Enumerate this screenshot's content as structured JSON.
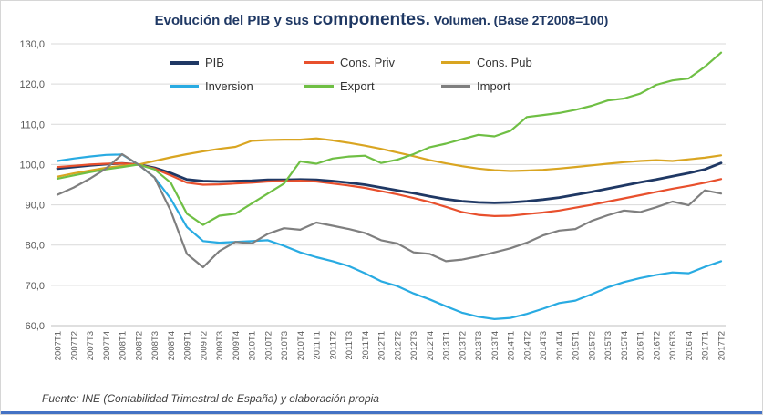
{
  "title": {
    "part1": "Evolución del PIB y sus ",
    "part2": "componentes.",
    "part3": " Volumen. (Base 2T2008=100)"
  },
  "footer": "Fuente: INE (Contabilidad Trimestral de España) y elaboración propia",
  "colors": {
    "title": "#1F3864",
    "axis_text": "#595959",
    "gridline": "#D9D9D9",
    "axis_line": "#BFBFBF",
    "accent_bar": "#4472C4"
  },
  "chart_data": {
    "type": "line",
    "title": "Evolución del PIB y sus componentes. Volumen. (Base 2T2008=100)",
    "xlabel": "",
    "ylabel": "",
    "ylim": [
      60,
      130
    ],
    "grid": true,
    "legend_position": "top-center",
    "y_ticks": [
      {
        "label": "60,0",
        "value": 60
      },
      {
        "label": "70,0",
        "value": 70
      },
      {
        "label": "80,0",
        "value": 80
      },
      {
        "label": "90,0",
        "value": 90
      },
      {
        "label": "100,0",
        "value": 100
      },
      {
        "label": "110,0",
        "value": 110
      },
      {
        "label": "120,0",
        "value": 120
      },
      {
        "label": "130,0",
        "value": 130
      }
    ],
    "categories": [
      "2007T1",
      "2007T2",
      "2007T3",
      "2007T4",
      "2008T1",
      "2008T2",
      "2008T3",
      "2008T4",
      "2009T1",
      "2009T2",
      "2009T3",
      "2009T4",
      "2010T1",
      "2010T2",
      "2010T3",
      "2010T4",
      "2011T1",
      "2011T2",
      "2011T3",
      "2011T4",
      "2012T1",
      "2012T2",
      "2012T3",
      "2012T4",
      "2013T1",
      "2013T2",
      "2013T3",
      "2013T4",
      "2014T1",
      "2014T2",
      "2014T3",
      "2014T4",
      "2015T1",
      "2015T2",
      "2015T3",
      "2015T4",
      "2016T1",
      "2016T2",
      "2016T3",
      "2016T4",
      "2017T1",
      "2017T2"
    ],
    "series": [
      {
        "name": "PIB",
        "color": "#1F3864",
        "width": 2.8,
        "values": [
          99.0,
          99.4,
          99.8,
          100.1,
          100.3,
          100.0,
          99.2,
          97.9,
          96.3,
          95.9,
          95.8,
          95.9,
          96.0,
          96.2,
          96.2,
          96.3,
          96.2,
          95.9,
          95.5,
          95.0,
          94.3,
          93.6,
          92.9,
          92.1,
          91.4,
          90.9,
          90.6,
          90.5,
          90.6,
          90.9,
          91.3,
          91.8,
          92.5,
          93.2,
          94.0,
          94.8,
          95.6,
          96.3,
          97.1,
          97.9,
          98.8,
          100.4
        ]
      },
      {
        "name": "Cons. Priv",
        "color": "#E8502D",
        "width": 2.2,
        "values": [
          99.4,
          99.7,
          100.0,
          100.2,
          100.3,
          100.0,
          99.0,
          97.3,
          95.5,
          95.0,
          95.1,
          95.3,
          95.5,
          95.8,
          95.9,
          96.0,
          95.8,
          95.3,
          94.8,
          94.2,
          93.4,
          92.6,
          91.7,
          90.7,
          89.5,
          88.2,
          87.5,
          87.2,
          87.3,
          87.7,
          88.1,
          88.6,
          89.3,
          90.0,
          90.8,
          91.6,
          92.4,
          93.2,
          94.0,
          94.7,
          95.5,
          96.4
        ]
      },
      {
        "name": "Cons. Pub",
        "color": "#D9A521",
        "width": 2.2,
        "values": [
          97.0,
          97.8,
          98.5,
          99.2,
          99.7,
          100.0,
          100.9,
          101.8,
          102.6,
          103.3,
          103.9,
          104.4,
          105.9,
          106.1,
          106.2,
          106.2,
          106.5,
          106.0,
          105.4,
          104.7,
          103.9,
          103.0,
          102.1,
          101.1,
          100.3,
          99.6,
          99.0,
          98.6,
          98.4,
          98.5,
          98.7,
          99.0,
          99.4,
          99.8,
          100.2,
          100.6,
          100.9,
          101.1,
          100.9,
          101.3,
          101.7,
          102.3
        ]
      },
      {
        "name": "Inversion",
        "color": "#29ABE2",
        "width": 2.2,
        "values": [
          100.9,
          101.5,
          102.0,
          102.4,
          102.5,
          100.0,
          96.8,
          91.5,
          84.5,
          81.0,
          80.6,
          80.8,
          81.0,
          81.2,
          79.8,
          78.2,
          77.0,
          76.0,
          74.8,
          73.0,
          71.0,
          69.8,
          68.0,
          66.5,
          64.8,
          63.2,
          62.2,
          61.6,
          61.9,
          62.9,
          64.2,
          65.6,
          66.2,
          67.8,
          69.5,
          70.8,
          71.8,
          72.6,
          73.2,
          73.0,
          74.6,
          76.0
        ]
      },
      {
        "name": "Export",
        "color": "#6FBF44",
        "width": 2.2,
        "values": [
          96.5,
          97.3,
          98.1,
          98.8,
          99.4,
          100.0,
          98.8,
          95.5,
          87.8,
          85.0,
          87.3,
          87.8,
          90.3,
          92.8,
          95.3,
          100.8,
          100.2,
          101.5,
          102.0,
          102.2,
          100.4,
          101.2,
          102.6,
          104.3,
          105.2,
          106.3,
          107.4,
          107.0,
          108.4,
          111.8,
          112.3,
          112.8,
          113.6,
          114.6,
          115.9,
          116.4,
          117.6,
          119.8,
          120.9,
          121.4,
          124.3,
          127.8
        ]
      },
      {
        "name": "Import",
        "color": "#7F7F7F",
        "width": 2.2,
        "values": [
          92.5,
          94.3,
          96.5,
          99.0,
          102.6,
          100.0,
          96.8,
          88.5,
          77.8,
          74.5,
          78.5,
          80.8,
          80.4,
          82.8,
          84.2,
          83.8,
          85.6,
          84.8,
          84.0,
          83.0,
          81.2,
          80.4,
          78.2,
          77.8,
          76.0,
          76.4,
          77.2,
          78.2,
          79.2,
          80.6,
          82.4,
          83.6,
          84.0,
          86.0,
          87.4,
          88.6,
          88.2,
          89.4,
          90.8,
          89.9,
          93.6,
          92.8
        ]
      }
    ]
  }
}
